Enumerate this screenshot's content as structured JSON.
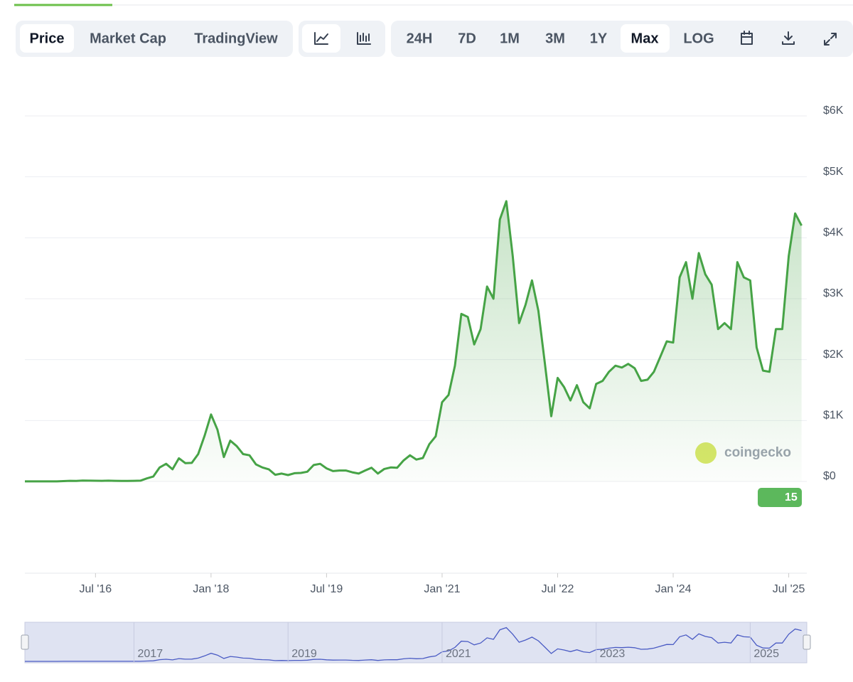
{
  "ui": {
    "tabs": [
      "Price",
      "Market Cap",
      "TradingView"
    ],
    "ranges": [
      "24H",
      "7D",
      "1M",
      "3M",
      "1Y",
      "Max",
      "LOG"
    ],
    "watermark": "coingecko",
    "news_count": "15"
  },
  "chart_data": {
    "type": "line",
    "color": "#46a346",
    "x": [
      "2015-08",
      "2015-09",
      "2015-10",
      "2015-11",
      "2015-12",
      "2016-01",
      "2016-02",
      "2016-03",
      "2016-04",
      "2016-05",
      "2016-06",
      "2016-07",
      "2016-08",
      "2016-09",
      "2016-10",
      "2016-11",
      "2016-12",
      "2017-01",
      "2017-02",
      "2017-03",
      "2017-04",
      "2017-05",
      "2017-06",
      "2017-07",
      "2017-08",
      "2017-09",
      "2017-10",
      "2017-11",
      "2017-12",
      "2018-01",
      "2018-02",
      "2018-03",
      "2018-04",
      "2018-05",
      "2018-06",
      "2018-07",
      "2018-08",
      "2018-09",
      "2018-10",
      "2018-11",
      "2018-12",
      "2019-01",
      "2019-02",
      "2019-03",
      "2019-04",
      "2019-05",
      "2019-06",
      "2019-07",
      "2019-08",
      "2019-09",
      "2019-10",
      "2019-11",
      "2019-12",
      "2020-01",
      "2020-02",
      "2020-03",
      "2020-04",
      "2020-05",
      "2020-06",
      "2020-07",
      "2020-08",
      "2020-09",
      "2020-10",
      "2020-11",
      "2020-12",
      "2021-01",
      "2021-02",
      "2021-03",
      "2021-04",
      "2021-05",
      "2021-06",
      "2021-07",
      "2021-08",
      "2021-09",
      "2021-10",
      "2021-11",
      "2021-12",
      "2022-01",
      "2022-02",
      "2022-03",
      "2022-04",
      "2022-05",
      "2022-06",
      "2022-07",
      "2022-08",
      "2022-09",
      "2022-10",
      "2022-11",
      "2022-12",
      "2023-01",
      "2023-02",
      "2023-03",
      "2023-04",
      "2023-05",
      "2023-06",
      "2023-07",
      "2023-08",
      "2023-09",
      "2023-10",
      "2023-11",
      "2023-12",
      "2024-01",
      "2024-02",
      "2024-03",
      "2024-04",
      "2024-05",
      "2024-06",
      "2024-07",
      "2024-08",
      "2024-09",
      "2024-10",
      "2024-11",
      "2024-12",
      "2025-01",
      "2025-02",
      "2025-03",
      "2025-04",
      "2025-05",
      "2025-06",
      "2025-07",
      "2025-08",
      "2025-09"
    ],
    "values": [
      1.2,
      0.9,
      0.9,
      0.9,
      0.9,
      1,
      6,
      11,
      8,
      14,
      13,
      12,
      11,
      13,
      11,
      9,
      8,
      10,
      13,
      50,
      80,
      230,
      290,
      200,
      380,
      300,
      305,
      450,
      750,
      1100,
      850,
      400,
      670,
      580,
      450,
      430,
      280,
      230,
      200,
      110,
      130,
      105,
      135,
      140,
      160,
      270,
      290,
      215,
      170,
      180,
      180,
      150,
      130,
      180,
      225,
      130,
      205,
      230,
      225,
      345,
      430,
      360,
      385,
      610,
      740,
      1300,
      1420,
      1900,
      2750,
      2700,
      2250,
      2500,
      3200,
      3000,
      4300,
      4600,
      3700,
      2600,
      2900,
      3300,
      2800,
      1950,
      1070,
      1700,
      1550,
      1330,
      1580,
      1300,
      1200,
      1600,
      1650,
      1800,
      1900,
      1870,
      1930,
      1860,
      1650,
      1670,
      1800,
      2050,
      2300,
      2280,
      3350,
      3600,
      3000,
      3750,
      3400,
      3230,
      2500,
      2600,
      2500,
      3600,
      3350,
      3300,
      2200,
      1820,
      1800,
      2500,
      2500,
      3700,
      4400,
      4200
    ],
    "ylim": [
      0,
      6000
    ],
    "yticks": [
      {
        "value": 0,
        "label": "$0"
      },
      {
        "value": 1000,
        "label": "$1K"
      },
      {
        "value": 2000,
        "label": "$2K"
      },
      {
        "value": 3000,
        "label": "$3K"
      },
      {
        "value": 4000,
        "label": "$4K"
      },
      {
        "value": 5000,
        "label": "$5K"
      },
      {
        "value": 6000,
        "label": "$6K"
      }
    ],
    "xticks": [
      {
        "value": "2016-07",
        "label": "Jul '16"
      },
      {
        "value": "2018-01",
        "label": "Jan '18"
      },
      {
        "value": "2019-07",
        "label": "Jul '19"
      },
      {
        "value": "2021-01",
        "label": "Jan '21"
      },
      {
        "value": "2022-07",
        "label": "Jul '22"
      },
      {
        "value": "2024-01",
        "label": "Jan '24"
      },
      {
        "value": "2025-07",
        "label": "Jul '25"
      }
    ],
    "grid": true,
    "navigator_ticks": [
      {
        "value": "2017-01",
        "label": "2017"
      },
      {
        "value": "2019-01",
        "label": "2019"
      },
      {
        "value": "2021-01",
        "label": "2021"
      },
      {
        "value": "2023-01",
        "label": "2023"
      },
      {
        "value": "2025-01",
        "label": "2025"
      }
    ]
  }
}
